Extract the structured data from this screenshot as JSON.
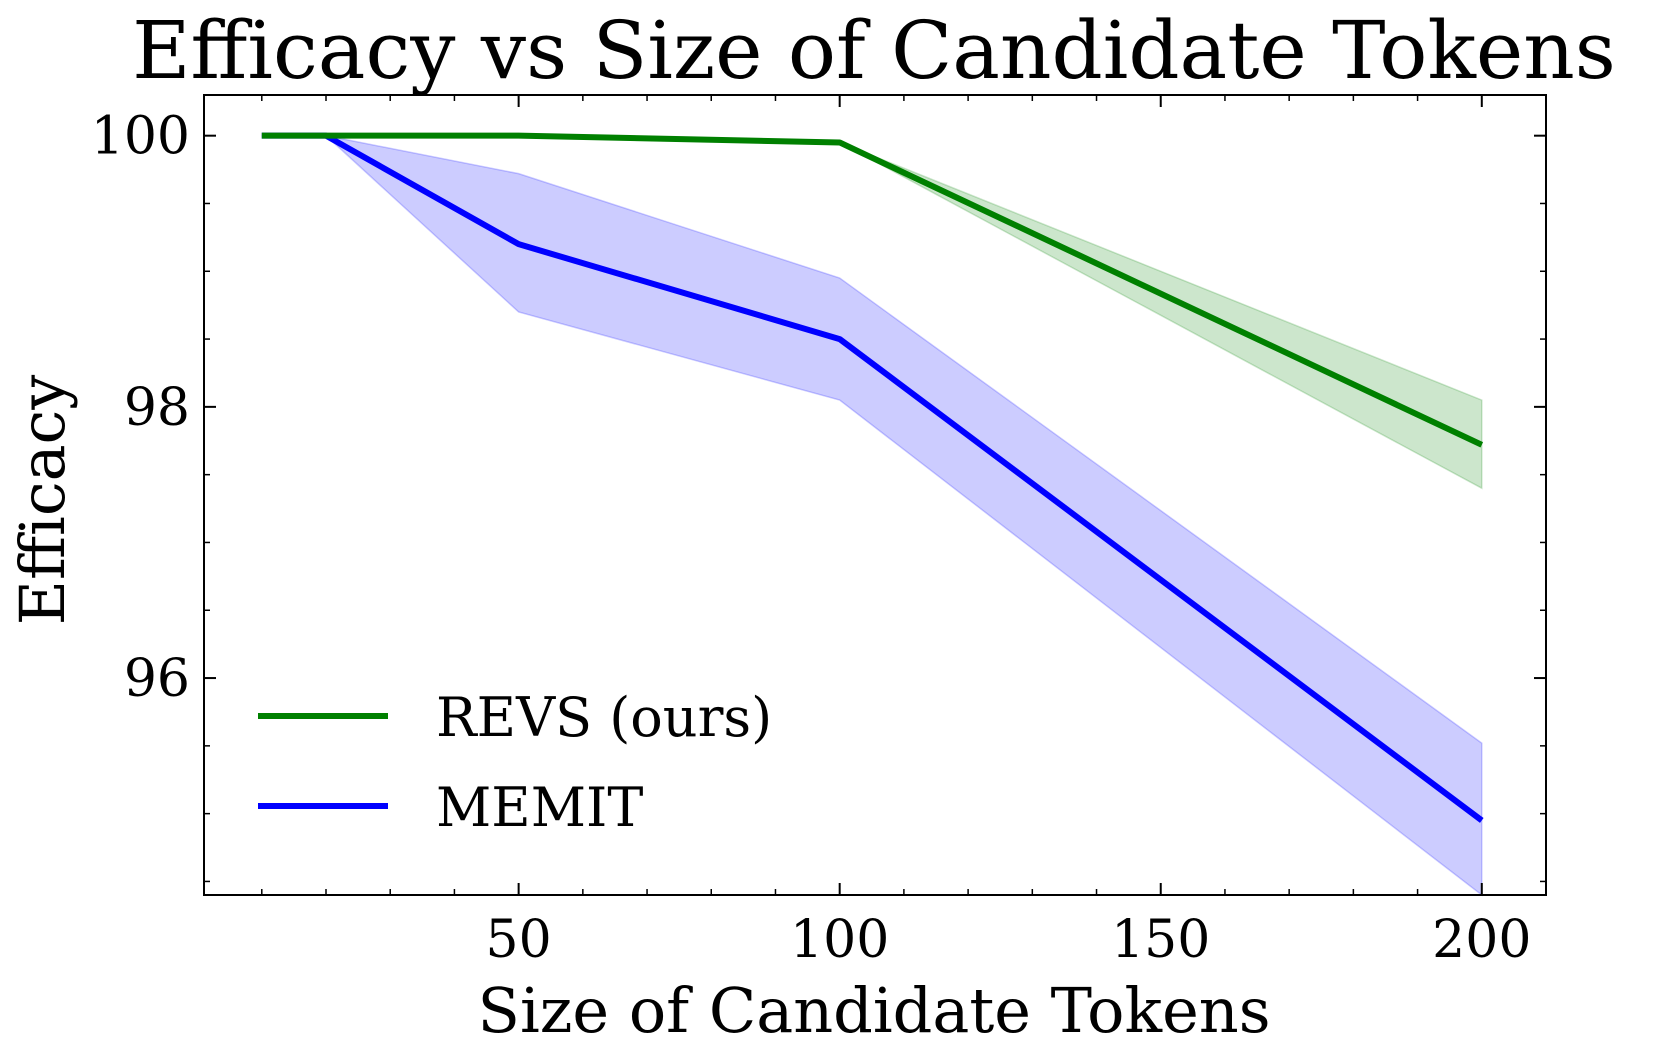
{
  "chart_data": {
    "type": "line",
    "title": "Efficacy vs Size of Candidate Tokens",
    "xlabel": "Size of Candidate Tokens",
    "ylabel": "Efficacy",
    "xlim": [
      1,
      210
    ],
    "ylim": [
      94.4,
      100.3
    ],
    "xticks": [
      50,
      100,
      150,
      200
    ],
    "yticks": [
      96,
      98,
      100
    ],
    "x_minor_step": 10,
    "y_minor_step": 0.5,
    "grid": false,
    "legend_position": "bottom-left",
    "series": [
      {
        "name": "REVS (ours)",
        "color": "#008000",
        "x": [
          10,
          20,
          50,
          100,
          200
        ],
        "y": [
          100.0,
          100.0,
          100.0,
          99.95,
          97.72
        ],
        "y_lower": [
          100.0,
          100.0,
          100.0,
          99.95,
          97.4
        ],
        "y_upper": [
          100.0,
          100.0,
          100.0,
          99.95,
          98.05
        ]
      },
      {
        "name": "MEMIT",
        "color": "#0000ff",
        "x": [
          10,
          20,
          50,
          100,
          200
        ],
        "y": [
          100.0,
          100.0,
          99.2,
          98.5,
          94.95
        ],
        "y_lower": [
          100.0,
          100.0,
          98.7,
          98.05,
          94.4
        ],
        "y_upper": [
          100.0,
          100.0,
          99.72,
          98.95,
          95.52
        ]
      }
    ]
  }
}
